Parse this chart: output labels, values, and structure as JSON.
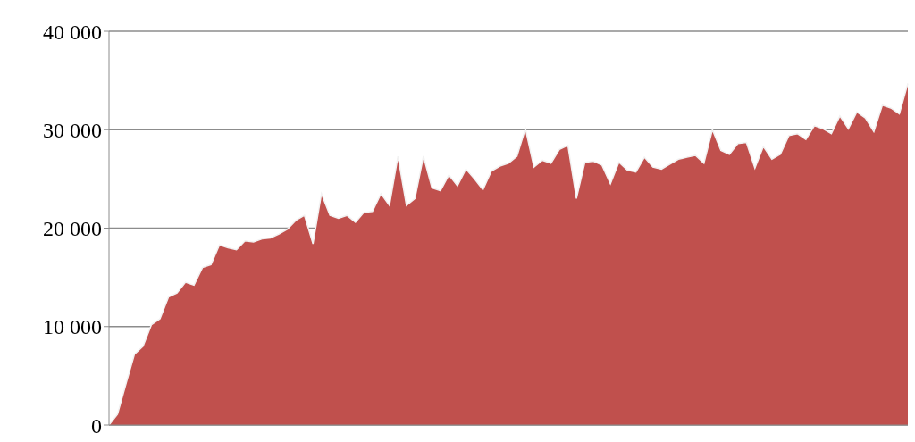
{
  "chart_data": {
    "type": "area",
    "categories": [
      null,
      null,
      null,
      null,
      null,
      null,
      null,
      null,
      null,
      null,
      null,
      null,
      null,
      null,
      null,
      null,
      null,
      null,
      null,
      null,
      null,
      null,
      null,
      null,
      null,
      null,
      null,
      null,
      null,
      null,
      null,
      null,
      null,
      null,
      null,
      null,
      null,
      null,
      null,
      null,
      null,
      null,
      null,
      null,
      null,
      null,
      null,
      null,
      null,
      null,
      null,
      null,
      null,
      null,
      null,
      null,
      null,
      null,
      null,
      null,
      null,
      null,
      null,
      null,
      null,
      null,
      null,
      null,
      null,
      null,
      null,
      null,
      null,
      null,
      null,
      null,
      null,
      null,
      null,
      null,
      null,
      null,
      null,
      null,
      null,
      null,
      null,
      null,
      null,
      null,
      null,
      null,
      null,
      null,
      null
    ],
    "series": [
      {
        "color": "#c0504d",
        "values": [
          0,
          1100,
          4200,
          7200,
          8000,
          10200,
          10800,
          13000,
          13400,
          14500,
          14200,
          16000,
          16300,
          18300,
          18000,
          17800,
          18700,
          18600,
          18900,
          19000,
          19400,
          19900,
          20800,
          21300,
          18400,
          23500,
          21300,
          21000,
          21300,
          20600,
          21600,
          21700,
          23500,
          22300,
          27300,
          22300,
          23000,
          27300,
          24100,
          23800,
          25400,
          24300,
          26000,
          25000,
          23900,
          25800,
          26300,
          26600,
          27300,
          30100,
          26200,
          26900,
          26600,
          28000,
          28400,
          23000,
          26700,
          26800,
          26400,
          24500,
          26700,
          25900,
          25700,
          27200,
          26200,
          26000,
          26500,
          27000,
          27200,
          27400,
          26600,
          30000,
          27900,
          27500,
          28600,
          28700,
          26100,
          28300,
          27000,
          27500,
          29400,
          29600,
          29000,
          30400,
          30100,
          29600,
          31400,
          30100,
          31800,
          31200,
          29800,
          32500,
          32200,
          31600,
          34700
        ]
      }
    ],
    "ylim": [
      0,
      40000
    ],
    "yticks": [
      {
        "value": 0,
        "label": "0"
      },
      {
        "value": 10000,
        "label": "10 000"
      },
      {
        "value": 20000,
        "label": "20 000"
      },
      {
        "value": 30000,
        "label": "30 000"
      },
      {
        "value": 40000,
        "label": "40 000"
      }
    ],
    "grid": "y",
    "tick_labels": "y"
  }
}
